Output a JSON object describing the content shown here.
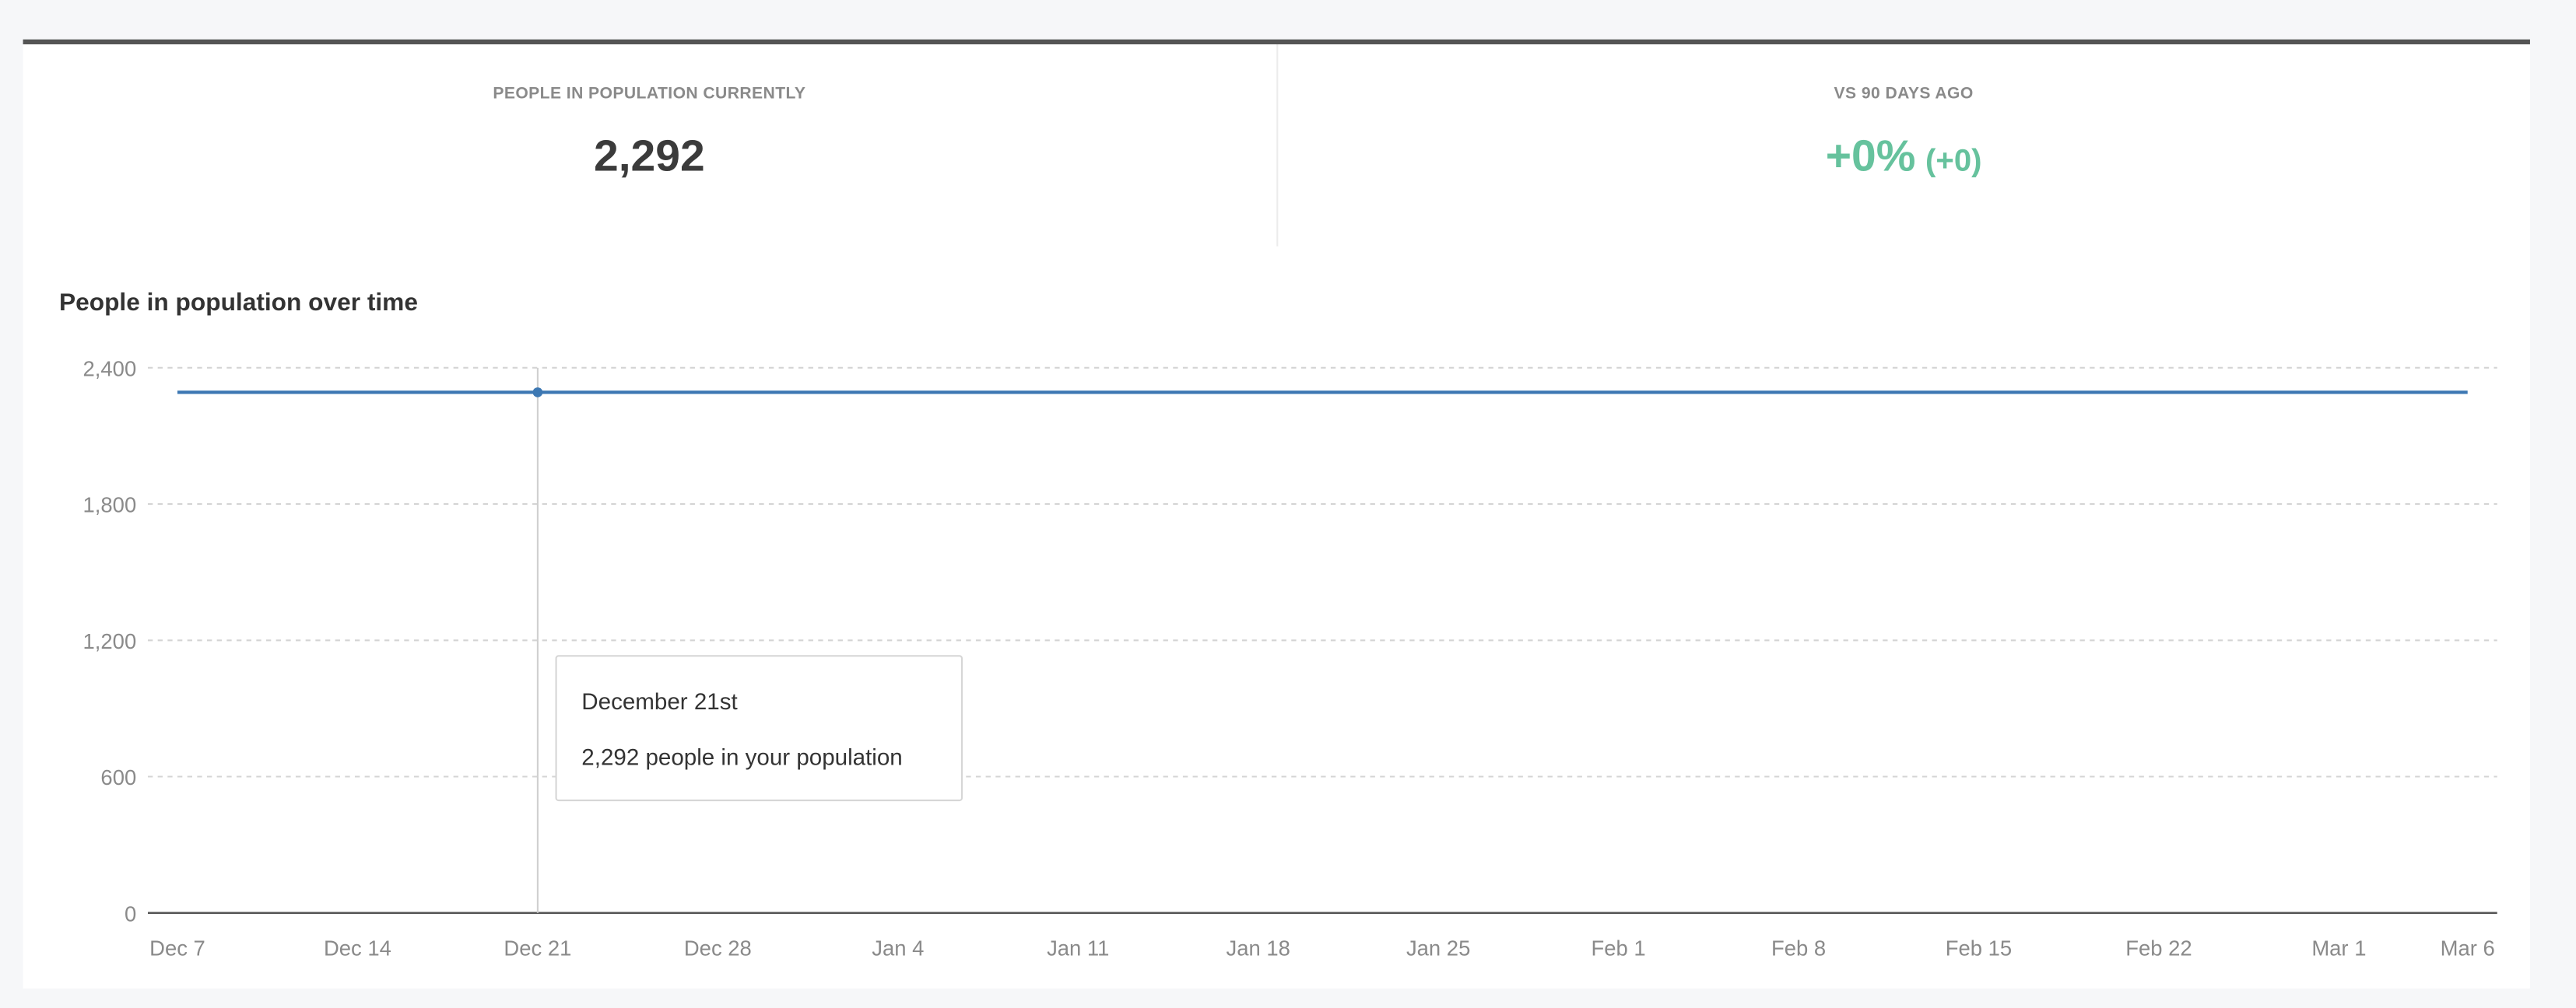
{
  "stats": {
    "current_label": "PEOPLE IN POPULATION CURRENTLY",
    "current_value": "2,292",
    "change_label": "VS 90 DAYS AGO",
    "change_percent": "+0%",
    "change_absolute": "(+0)",
    "change_color": "#66c29d"
  },
  "tooltip": {
    "date": "December 21st",
    "text": "2,292 people in your population"
  },
  "chart_data": {
    "type": "line",
    "title": "People in population over time",
    "xlabel": "",
    "ylabel": "",
    "ylim": [
      0,
      2400
    ],
    "yticks": [
      0,
      600,
      1200,
      1800,
      2400
    ],
    "ytick_labels": [
      "0",
      "600",
      "1,200",
      "1,800",
      "2,400"
    ],
    "xlim": [
      "Dec 7",
      "Mar 6"
    ],
    "xtick_labels": [
      "Dec 7",
      "Dec 14",
      "Dec 21",
      "Dec 28",
      "Jan 4",
      "Jan 11",
      "Jan 18",
      "Jan 25",
      "Feb 1",
      "Feb 8",
      "Feb 15",
      "Feb 22",
      "Mar 1",
      "Mar 6"
    ],
    "xtick_days": [
      0,
      7,
      14,
      21,
      28,
      35,
      42,
      49,
      56,
      63,
      70,
      77,
      84,
      89
    ],
    "series": [
      {
        "x": [
          "Dec 7",
          "Mar 6"
        ],
        "values": [
          2292,
          2292
        ],
        "color": "#3d78b3"
      }
    ],
    "highlight": {
      "x": "Dec 21",
      "value": 2292
    },
    "grid": true
  }
}
